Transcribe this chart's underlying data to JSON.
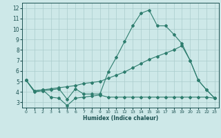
{
  "xlabel": "Humidex (Indice chaleur)",
  "bg_color": "#cde8e8",
  "grid_color": "#aacccc",
  "line_color": "#2e7d6e",
  "text_color": "#1a5050",
  "xlim": [
    -0.5,
    23.5
  ],
  "ylim": [
    2.5,
    12.5
  ],
  "xticks": [
    0,
    1,
    2,
    3,
    4,
    5,
    6,
    7,
    8,
    9,
    10,
    11,
    12,
    13,
    14,
    15,
    16,
    17,
    18,
    19,
    20,
    21,
    22,
    23
  ],
  "yticks": [
    3,
    4,
    5,
    6,
    7,
    8,
    9,
    10,
    11,
    12
  ],
  "line1_x": [
    0,
    1,
    2,
    3,
    4,
    5,
    6,
    7,
    8,
    9,
    10,
    11,
    12,
    13,
    14,
    15,
    16,
    17,
    18,
    19,
    20,
    21,
    22,
    23
  ],
  "line1_y": [
    5.1,
    4.0,
    4.1,
    4.2,
    4.3,
    3.3,
    4.3,
    3.8,
    3.8,
    3.8,
    5.9,
    7.3,
    8.8,
    10.3,
    11.5,
    11.8,
    10.3,
    10.3,
    9.5,
    8.6,
    7.0,
    5.1,
    4.2,
    3.4
  ],
  "line2_x": [
    0,
    1,
    2,
    3,
    4,
    5,
    6,
    7,
    8,
    9,
    10,
    11,
    12,
    13,
    14,
    15,
    16,
    17,
    18,
    19,
    20,
    21,
    22,
    23
  ],
  "line2_y": [
    5.1,
    4.1,
    4.2,
    4.3,
    4.4,
    4.5,
    4.6,
    4.8,
    4.9,
    5.0,
    5.3,
    5.6,
    5.9,
    6.3,
    6.7,
    7.1,
    7.4,
    7.7,
    8.0,
    8.4,
    7.0,
    5.1,
    4.2,
    3.4
  ],
  "line3_x": [
    0,
    1,
    2,
    3,
    4,
    5,
    6,
    7,
    8,
    9,
    10,
    11,
    12,
    13,
    14,
    15,
    16,
    17,
    18,
    19,
    20,
    21,
    22,
    23
  ],
  "line3_y": [
    5.1,
    4.1,
    4.2,
    3.5,
    3.4,
    2.7,
    3.4,
    3.5,
    3.6,
    3.7,
    3.5,
    3.5,
    3.5,
    3.5,
    3.5,
    3.5,
    3.5,
    3.5,
    3.5,
    3.5,
    3.5,
    3.5,
    3.5,
    3.4
  ],
  "xlabel_fontsize": 5.5,
  "tick_fontsize_x": 4.5,
  "tick_fontsize_y": 5.5
}
